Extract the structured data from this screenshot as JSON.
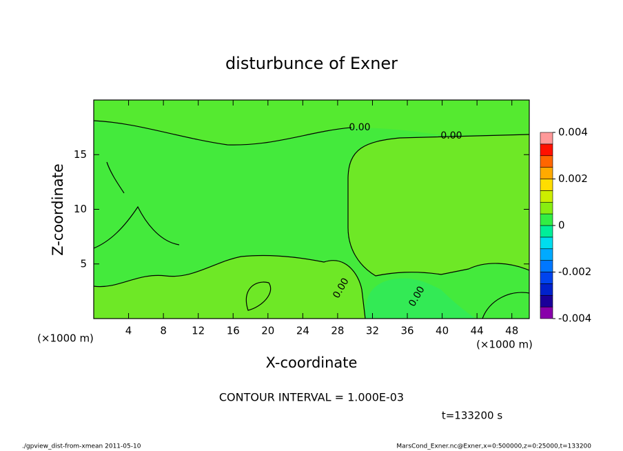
{
  "chart_data": {
    "type": "contour",
    "title": "disturbunce of Exner",
    "x_label": "X-coordinate",
    "y_label": "Z-coordinate",
    "x_unit_label": "(×1000 m)",
    "y_unit_label": "(×1000 m)",
    "xlim": [
      0,
      50
    ],
    "xticks": [
      4,
      8,
      12,
      16,
      20,
      24,
      28,
      32,
      36,
      40,
      44,
      48
    ],
    "ylim": [
      0,
      20
    ],
    "yticks": [
      5,
      10,
      15
    ],
    "contour_labels": [
      "0.00",
      "0.00",
      "0.00",
      "0.00"
    ],
    "colorbar": {
      "lim": [
        -0.004,
        0.004
      ],
      "ticks": [
        -0.004,
        -0.002,
        0,
        0.002,
        0.004
      ],
      "colors": [
        "#8800aa",
        "#1a0099",
        "#0022cc",
        "#0044ee",
        "#0077ff",
        "#00aaff",
        "#00ddee",
        "#00ee99",
        "#33ee44",
        "#88ee11",
        "#ccee00",
        "#ffdd00",
        "#ffaa00",
        "#ff6600",
        "#ff1100",
        "#ff9999"
      ]
    },
    "contour_interval": "CONTOUR INTERVAL = 1.000E-03",
    "time_label": "t=133200 s",
    "footer_left": "./gpview_dist-from-xmean  2011-05-10",
    "footer_right": "MarsCond_Exner.nc@Exner,x=0:500000,z=0:25000,t=133200"
  }
}
